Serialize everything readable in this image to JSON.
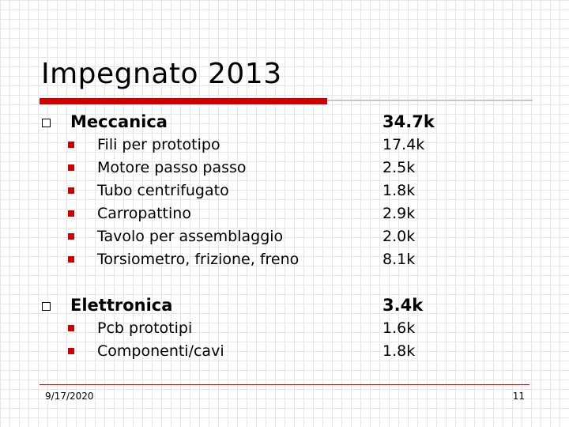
{
  "slide": {
    "title": "Impegnato 2013",
    "sections": [
      {
        "label": "Meccanica",
        "value": "34.7k",
        "items": [
          {
            "label": "Fili per prototipo",
            "value": "17.4k"
          },
          {
            "label": "Motore passo passo",
            "value": "2.5k"
          },
          {
            "label": "Tubo centrifugato",
            "value": "1.8k"
          },
          {
            "label": "Carropattino",
            "value": "2.9k"
          },
          {
            "label": "Tavolo per assemblaggio",
            "value": "2.0k"
          },
          {
            "label": "Torsiometro, frizione, freno",
            "value": "8.1k"
          }
        ]
      },
      {
        "label": "Elettronica",
        "value": "3.4k",
        "items": [
          {
            "label": "Pcb prototipi",
            "value": "1.6k"
          },
          {
            "label": "Componenti/cavi",
            "value": "1.8k"
          }
        ]
      }
    ]
  },
  "footer": {
    "date": "9/17/2020",
    "page_number": "11"
  },
  "colors": {
    "accent": "#cc0000",
    "grid": "#e6e6e6"
  }
}
